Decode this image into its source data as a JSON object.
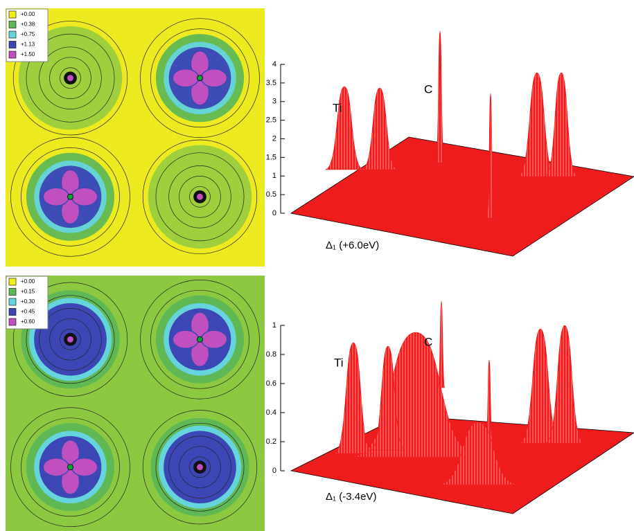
{
  "chart_data": [
    {
      "type": "contour",
      "legend": [
        {
          "value": 0,
          "label": "+0.00",
          "color": "#f2ee1a"
        },
        {
          "value": 0.38,
          "label": "+0.38",
          "color": "#5fb854"
        },
        {
          "value": 0.75,
          "label": "+0.75",
          "color": "#66d4dc"
        },
        {
          "value": 1.13,
          "label": "+1.13",
          "color": "#3c46b4"
        },
        {
          "value": 1.5,
          "label": "+1.50",
          "color": "#c050c0"
        }
      ]
    },
    {
      "type": "surface",
      "zlim": [
        0,
        4
      ],
      "zticks": [
        0,
        0.5,
        1,
        1.5,
        2,
        2.5,
        3,
        3.5,
        4
      ],
      "annotations": [
        "Ti",
        "C"
      ],
      "xlabel": "Δ₁ (+6.0eV)",
      "color": "#ee1c1c"
    },
    {
      "type": "contour",
      "legend": [
        {
          "value": 0,
          "label": "+0.00",
          "color": "#f2ee1a"
        },
        {
          "value": 0.15,
          "label": "+0.15",
          "color": "#5fb854"
        },
        {
          "value": 0.3,
          "label": "+0.30",
          "color": "#66d4dc"
        },
        {
          "value": 0.45,
          "label": "+0.45",
          "color": "#3c46b4"
        },
        {
          "value": 0.6,
          "label": "+0.60",
          "color": "#c050c0"
        }
      ]
    },
    {
      "type": "surface",
      "zlim": [
        0,
        1
      ],
      "zticks": [
        0,
        0.2,
        0.4,
        0.6,
        0.8,
        1
      ],
      "annotations": [
        "Ti",
        "C"
      ],
      "xlabel": "Δ₁ (-3.4eV)",
      "color": "#ee1c1c"
    }
  ]
}
